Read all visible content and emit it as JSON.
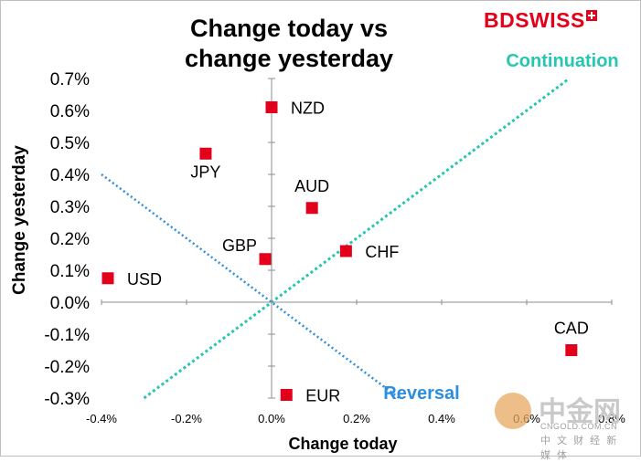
{
  "brand": {
    "name": "BDSWISS"
  },
  "watermark": {
    "name": "中金网",
    "domain": "CNGOLD.COM.CN",
    "subtitle": "中 文 财 经 新 媒 体"
  },
  "chart_data": {
    "type": "scatter",
    "title": "Change today vs change yesterday",
    "title_lines": [
      "Change today vs",
      "change yesterday"
    ],
    "xlabel": "Change today",
    "ylabel": "Change yesterday",
    "xlim": [
      -0.4,
      0.8
    ],
    "ylim": [
      -0.3,
      0.7
    ],
    "x_ticks": [
      -0.4,
      -0.2,
      0.0,
      0.2,
      0.4,
      0.6,
      0.8
    ],
    "x_tick_labels": [
      "-0.4%",
      "-0.2%",
      "0.0%",
      "0.2%",
      "0.4%",
      "0.6%",
      "0.8%"
    ],
    "y_ticks": [
      0.7,
      0.6,
      0.5,
      0.4,
      0.3,
      0.2,
      0.1,
      0.0,
      -0.1,
      -0.2,
      -0.3
    ],
    "y_tick_labels": [
      "0.7%",
      "0.6%",
      "0.5%",
      "0.4%",
      "0.3%",
      "0.2%",
      "0.1%",
      "0.0%",
      "-0.1%",
      "-0.2%",
      "-0.3%"
    ],
    "marker_color": "#e3001b",
    "points": [
      {
        "label": "NZD",
        "x": 0.0,
        "y": 0.61,
        "label_pos": "right"
      },
      {
        "label": "JPY",
        "x": -0.155,
        "y": 0.465,
        "label_pos": "below"
      },
      {
        "label": "AUD",
        "x": 0.095,
        "y": 0.295,
        "label_pos": "above"
      },
      {
        "label": "GBP",
        "x": -0.015,
        "y": 0.135,
        "label_pos": "left"
      },
      {
        "label": "CHF",
        "x": 0.175,
        "y": 0.16,
        "label_pos": "right"
      },
      {
        "label": "USD",
        "x": -0.385,
        "y": 0.075,
        "label_pos": "right"
      },
      {
        "label": "CAD",
        "x": 0.705,
        "y": -0.15,
        "label_pos": "above"
      },
      {
        "label": "EUR",
        "x": 0.035,
        "y": -0.29,
        "label_pos": "right"
      }
    ],
    "guides": [
      {
        "name": "Continuation",
        "color": "#26c6b0",
        "from": [
          -0.3,
          -0.3
        ],
        "to": [
          0.7,
          0.7
        ]
      },
      {
        "name": "Reversal",
        "color": "#2b8ee0",
        "from": [
          -0.4,
          0.4
        ],
        "to": [
          0.3,
          -0.3
        ]
      }
    ]
  }
}
